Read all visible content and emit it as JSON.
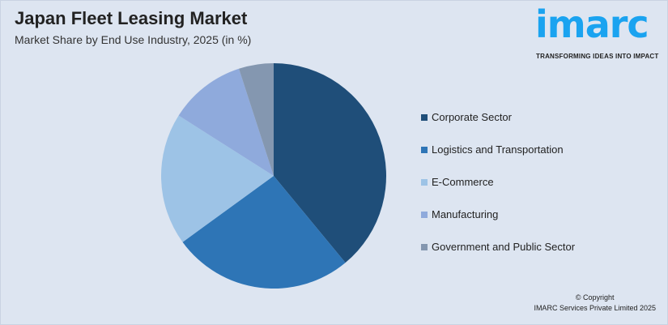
{
  "header": {
    "title": "Japan Fleet Leasing Market",
    "subtitle": "Market Share by End Use Industry, 2025 (in %)"
  },
  "logo": {
    "text": "imarc",
    "tagline": "TRANSFORMING IDEAS INTO IMPACT"
  },
  "footer": {
    "copyright": "© Copyright",
    "company": "IMARC Services Private Limited 2025"
  },
  "chart_data": {
    "type": "pie",
    "title": "Japan Fleet Leasing Market",
    "subtitle": "Market Share by End Use Industry, 2025 (in %)",
    "legend_position": "right",
    "categories": [
      "Corporate Sector",
      "Logistics and Transportation",
      "E-Commerce",
      "Manufacturing",
      "Government and Public Sector"
    ],
    "values": [
      39,
      26,
      19,
      11,
      5
    ],
    "colors": [
      "#1f4e79",
      "#2e75b6",
      "#9dc3e6",
      "#8faadc",
      "#8497b0"
    ]
  }
}
